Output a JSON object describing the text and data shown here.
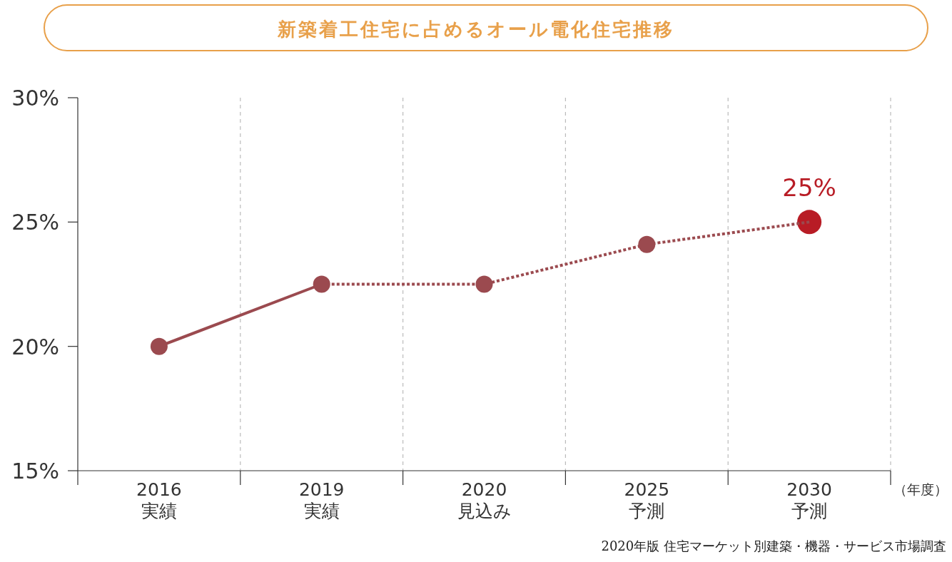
{
  "chart_data": {
    "type": "line",
    "title": "新築着工住宅に占めるオール電化住宅推移",
    "categories": [
      "2016\n実績",
      "2019\n実績",
      "2020\n見込み",
      "2025\n予測",
      "2030\n予測"
    ],
    "xlabel": "（年度）",
    "series": [
      {
        "color": "#9b4a4f",
        "line_style": "solid",
        "values": [
          20,
          22.5,
          null,
          null,
          null
        ]
      },
      {
        "color": "#9b4a4f",
        "line_style": "dotted",
        "values": [
          null,
          22.5,
          22.5,
          24.1,
          25
        ]
      },
      {
        "type": "scatter",
        "color": "#b81c25",
        "values": [
          null,
          null,
          null,
          null,
          25
        ],
        "value_labels": [
          null,
          null,
          null,
          null,
          "25%"
        ]
      }
    ],
    "marker": "circle",
    "ylim": [
      15,
      30
    ],
    "yticks": [
      {
        "value": 15,
        "label": "15%"
      },
      {
        "value": 20,
        "label": "20%"
      },
      {
        "value": 25,
        "label": "25%"
      },
      {
        "value": 30,
        "label": "30%"
      }
    ],
    "grid": "x",
    "annotations": [
      "2020年版 住宅マーケット別建築・機器・サービス市場調査"
    ]
  }
}
